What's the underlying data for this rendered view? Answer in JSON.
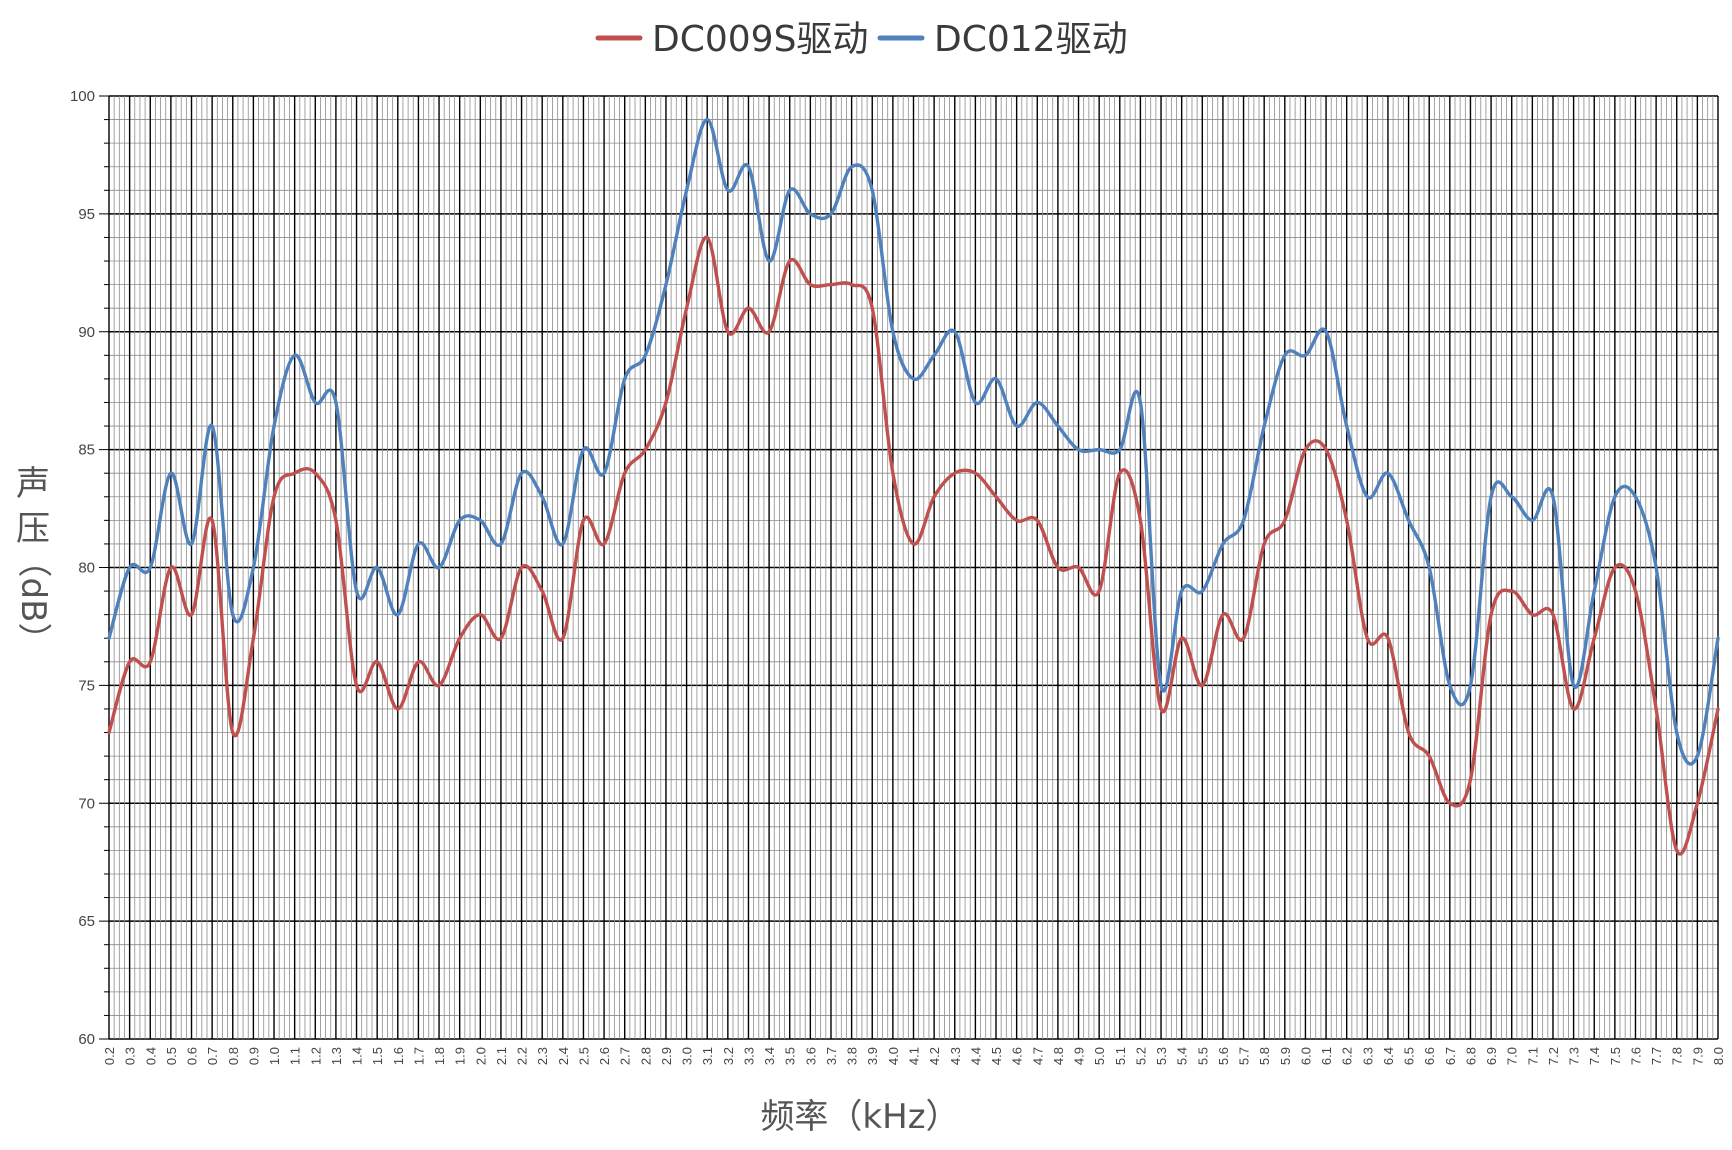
{
  "chart_data": {
    "type": "line",
    "xlabel": "频率（kHz）",
    "ylabel_chars": [
      "声",
      "压",
      "（dB）"
    ],
    "ylim": [
      60,
      100
    ],
    "yticks": [
      60,
      65,
      70,
      75,
      80,
      85,
      90,
      95,
      100
    ],
    "grid": true,
    "legend_position": "top-center",
    "categories": [
      "0.2",
      "0.3",
      "0.4",
      "0.5",
      "0.6",
      "0.7",
      "0.8",
      "0.9",
      "1.0",
      "1.1",
      "1.2",
      "1.3",
      "1.4",
      "1.5",
      "1.6",
      "1.7",
      "1.8",
      "1.9",
      "2.0",
      "2.1",
      "2.2",
      "2.3",
      "2.4",
      "2.5",
      "2.6",
      "2.7",
      "2.8",
      "2.9",
      "3.0",
      "3.1",
      "3.2",
      "3.3",
      "3.4",
      "3.5",
      "3.6",
      "3.7",
      "3.8",
      "3.9",
      "4.0",
      "4.1",
      "4.2",
      "4.3",
      "4.4",
      "4.5",
      "4.6",
      "4.7",
      "4.8",
      "4.9",
      "5.0",
      "5.1",
      "5.2",
      "5.3",
      "5.4",
      "5.5",
      "5.6",
      "5.7",
      "5.8",
      "5.9",
      "6.0",
      "6.1",
      "6.2",
      "6.3",
      "6.4",
      "6.5",
      "6.6",
      "6.7",
      "6.8",
      "6.9",
      "7.0",
      "7.1",
      "7.2",
      "7.3",
      "7.4",
      "7.5",
      "7.6",
      "7.7",
      "7.8",
      "7.9",
      "8.0"
    ],
    "series": [
      {
        "name": "DC009S驱动",
        "color": "#c0504d",
        "values": [
          73,
          76,
          76,
          80,
          78,
          82,
          73,
          77,
          83,
          84,
          84,
          82,
          75,
          76,
          74,
          76,
          75,
          77,
          78,
          77,
          80,
          79,
          77,
          82,
          81,
          84,
          85,
          87,
          91,
          94,
          90,
          91,
          90,
          93,
          92,
          92,
          92,
          91,
          84,
          81,
          83,
          84,
          84,
          83,
          82,
          82,
          80,
          80,
          79,
          84,
          82,
          74,
          77,
          75,
          78,
          77,
          81,
          82,
          85,
          85,
          82,
          77,
          77,
          73,
          72,
          70,
          71,
          78,
          79,
          78,
          78,
          74,
          77,
          80,
          79,
          74,
          68,
          70,
          74
        ]
      },
      {
        "name": "DC012驱动",
        "color": "#4f81bd",
        "values": [
          77,
          80,
          80,
          84,
          81,
          86,
          78,
          80,
          86,
          89,
          87,
          87,
          79,
          80,
          78,
          81,
          80,
          82,
          82,
          81,
          84,
          83,
          81,
          85,
          84,
          88,
          89,
          92,
          96,
          99,
          96,
          97,
          93,
          96,
          95,
          95,
          97,
          96,
          90,
          88,
          89,
          90,
          87,
          88,
          86,
          87,
          86,
          85,
          85,
          85,
          87,
          75,
          79,
          79,
          81,
          82,
          86,
          89,
          89,
          90,
          86,
          83,
          84,
          82,
          80,
          75,
          75,
          83,
          83,
          82,
          83,
          75,
          79,
          83,
          83,
          80,
          73,
          72,
          77
        ]
      }
    ]
  }
}
